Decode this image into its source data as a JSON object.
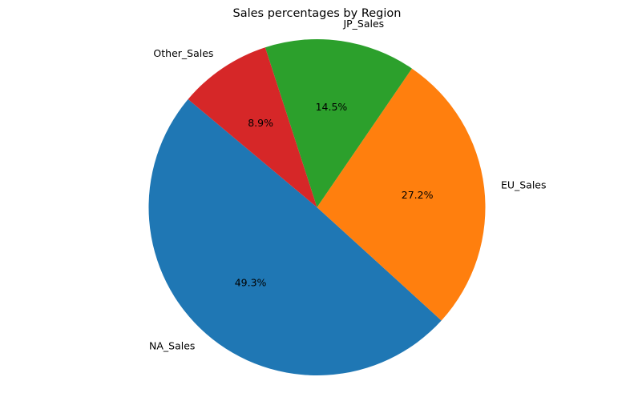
{
  "chart_data": {
    "type": "pie",
    "title": "Sales percentages by Region",
    "categories": [
      "NA_Sales",
      "EU_Sales",
      "JP_Sales",
      "Other_Sales"
    ],
    "values": [
      49.3,
      27.2,
      14.5,
      8.9
    ],
    "value_labels": [
      "49.3%",
      "27.2%",
      "14.5%",
      "8.9%"
    ],
    "colors": [
      "#1f77b4",
      "#ff7f0e",
      "#2ca02c",
      "#d62728"
    ],
    "start_angle_deg": 140,
    "direction": "counterclockwise",
    "legend": "none"
  }
}
